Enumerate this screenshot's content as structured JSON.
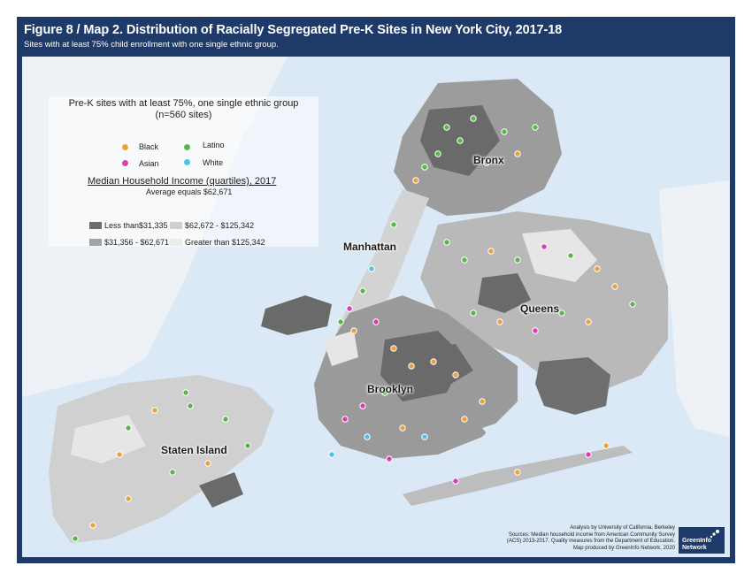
{
  "title": "Figure 8 / Map 2. Distribution of Racially Segregated Pre-K Sites in New York City, 2017-18",
  "subtitle": "Sites with at least 75% child enrollment with one single ethnic group.",
  "borough_labels": {
    "bronx": "Bronx",
    "manhattan": "Manhattan",
    "queens": "Queens",
    "brooklyn": "Brooklyn",
    "staten_island": "Staten Island"
  },
  "legend_segregation": {
    "title": "Pre-K sites with at least 75%, one single ethnic group (n=560 sites)",
    "items": [
      {
        "label": "Black",
        "color": "#e8a33c"
      },
      {
        "label": "Latino",
        "color": "#5ab54a"
      },
      {
        "label": "Asian",
        "color": "#d63fb6"
      },
      {
        "label": "White",
        "color": "#4fc4e0"
      }
    ]
  },
  "legend_income": {
    "title": "Median Household Income (quartiles), 2017",
    "subtitle": "Average equals $62,671",
    "items": [
      {
        "label": "Less than$31,335",
        "color": "#6d6d6d"
      },
      {
        "label": "$62,672 - $125,342",
        "color": "#cfcfcf"
      },
      {
        "label": "$31,356 - $62,671",
        "color": "#a3a3a3"
      },
      {
        "label": "Greater than $125,342",
        "color": "#ececec"
      }
    ]
  },
  "credits": {
    "line1": "Analysis by University of California, Berkeley",
    "line2": "Sources: Median household income from American Community Survey",
    "line3": "(ACS) 2013-2017. Quality measures from the Department of Education.",
    "line4": "Map produced by GreenInfo Network, 2020"
  },
  "logo": {
    "line1": "GreenInfo",
    "line2": "Network"
  },
  "colors": {
    "frame": "#1e3a68",
    "water": "#dbe8f5",
    "land": "#c9c9c9"
  }
}
